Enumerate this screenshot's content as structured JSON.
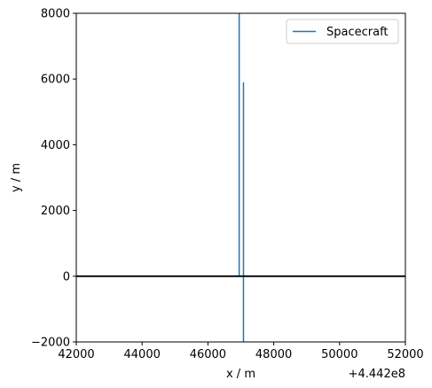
{
  "chart_data": {
    "type": "line",
    "xlabel": "x / m",
    "ylabel": "y / m",
    "x_offset_label": "+4.442e8",
    "xlim": [
      42000,
      52000
    ],
    "ylim": [
      -2000,
      8000
    ],
    "x_ticks": [
      42000,
      44000,
      46000,
      48000,
      50000,
      52000
    ],
    "x_tick_labels": [
      "42000",
      "44000",
      "46000",
      "48000",
      "50000",
      "52000"
    ],
    "y_ticks": [
      -2000,
      0,
      2000,
      4000,
      6000,
      8000
    ],
    "y_tick_labels": [
      "−2000",
      "0",
      "2000",
      "4000",
      "6000",
      "8000"
    ],
    "grid": false,
    "legend_position": "top-right",
    "series": [
      {
        "name": "Spacecraft",
        "color": "#1f77b4",
        "x": [
          46950,
          46950,
          46990,
          47030,
          47060,
          47080,
          47080,
          47080
        ],
        "y": [
          8000,
          0,
          0,
          0,
          0,
          0,
          5900,
          -2000
        ]
      }
    ],
    "reference_lines": [
      {
        "orientation": "horizontal",
        "y": 0,
        "color": "#000000"
      }
    ]
  }
}
